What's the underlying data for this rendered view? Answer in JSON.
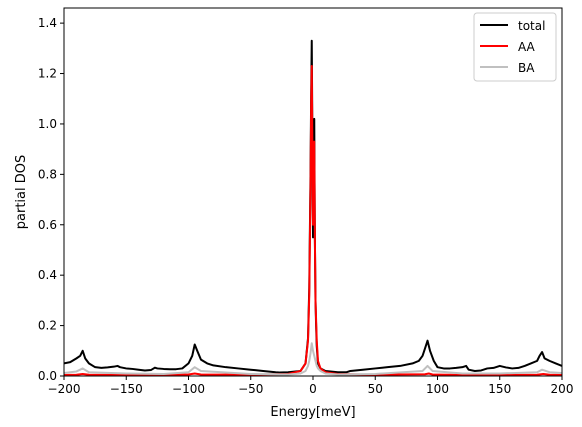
{
  "chart_data": {
    "type": "line",
    "title": "",
    "xlabel": "Energy[meV]",
    "ylabel": "partial DOS",
    "xlim": [
      -200,
      200
    ],
    "ylim": [
      0,
      1.46
    ],
    "xticks": [
      -200,
      -150,
      -100,
      -50,
      0,
      50,
      100,
      150,
      200
    ],
    "xtick_labels": [
      "−200",
      "−150",
      "−100",
      "−50",
      "0",
      "50",
      "100",
      "150",
      "200"
    ],
    "yticks": [
      0,
      0.2,
      0.4,
      0.6,
      0.8,
      1.0,
      1.2,
      1.4
    ],
    "ytick_labels": [
      "0.0",
      "0.2",
      "0.4",
      "0.6",
      "0.8",
      "1.0",
      "1.2",
      "1.4"
    ],
    "grid": false,
    "legend": {
      "position": "top-right"
    },
    "series": [
      {
        "name": "total",
        "color": "#000000",
        "x": [
          -200,
          -195,
          -190,
          -187,
          -185,
          -183,
          -180,
          -175,
          -170,
          -165,
          -160,
          -157,
          -155,
          -150,
          -145,
          -140,
          -135,
          -130,
          -127,
          -125,
          -120,
          -115,
          -110,
          -105,
          -100,
          -97,
          -95,
          -93,
          -90,
          -85,
          -80,
          -70,
          -60,
          -50,
          -40,
          -30,
          -27,
          -20,
          -10,
          -6,
          -4,
          -3,
          -2,
          -1.5,
          -1,
          -0.5,
          0,
          0.5,
          1,
          1.5,
          2,
          2.5,
          3,
          4,
          6,
          10,
          20,
          27,
          30,
          40,
          50,
          60,
          70,
          80,
          85,
          88,
          90,
          92,
          94,
          97,
          100,
          105,
          110,
          115,
          120,
          123,
          125,
          130,
          135,
          140,
          145,
          150,
          155,
          160,
          165,
          170,
          175,
          180,
          182,
          184,
          186,
          190,
          195,
          200
        ],
        "y": [
          0.05,
          0.055,
          0.07,
          0.08,
          0.1,
          0.07,
          0.05,
          0.035,
          0.032,
          0.034,
          0.037,
          0.04,
          0.035,
          0.03,
          0.028,
          0.025,
          0.022,
          0.024,
          0.033,
          0.03,
          0.028,
          0.027,
          0.027,
          0.03,
          0.05,
          0.08,
          0.125,
          0.1,
          0.065,
          0.05,
          0.042,
          0.035,
          0.03,
          0.025,
          0.02,
          0.015,
          0.014,
          0.015,
          0.02,
          0.05,
          0.15,
          0.35,
          0.8,
          1.1,
          1.33,
          0.95,
          0.55,
          0.65,
          1.02,
          0.55,
          0.3,
          0.2,
          0.12,
          0.05,
          0.03,
          0.02,
          0.015,
          0.015,
          0.02,
          0.025,
          0.03,
          0.035,
          0.04,
          0.05,
          0.06,
          0.08,
          0.11,
          0.14,
          0.1,
          0.06,
          0.035,
          0.03,
          0.03,
          0.032,
          0.035,
          0.04,
          0.025,
          0.02,
          0.022,
          0.03,
          0.032,
          0.04,
          0.034,
          0.03,
          0.032,
          0.04,
          0.05,
          0.06,
          0.08,
          0.095,
          0.07,
          0.06,
          0.05,
          0.04
        ]
      },
      {
        "name": "AA",
        "color": "#ff0000",
        "x": [
          -200,
          -190,
          -185,
          -180,
          -150,
          -120,
          -100,
          -95,
          -90,
          -50,
          -20,
          -10,
          -6,
          -4,
          -3,
          -2,
          -1.5,
          -1,
          -0.5,
          0,
          0.5,
          1,
          1.5,
          2,
          3,
          4,
          6,
          10,
          20,
          50,
          90,
          93,
          96,
          120,
          150,
          180,
          185,
          190,
          200
        ],
        "y": [
          0.004,
          0.005,
          0.008,
          0.005,
          0.004,
          0.004,
          0.006,
          0.01,
          0.006,
          0.005,
          0.008,
          0.02,
          0.05,
          0.14,
          0.32,
          0.75,
          1.05,
          1.23,
          0.9,
          0.6,
          0.75,
          0.93,
          0.55,
          0.3,
          0.14,
          0.06,
          0.03,
          0.015,
          0.008,
          0.005,
          0.007,
          0.01,
          0.006,
          0.004,
          0.004,
          0.005,
          0.008,
          0.005,
          0.004
        ]
      },
      {
        "name": "BA",
        "color": "#c0c0c0",
        "x": [
          -200,
          -190,
          -185,
          -180,
          -150,
          -120,
          -100,
          -95,
          -90,
          -50,
          -20,
          -10,
          -6,
          -4,
          -3,
          -2,
          -1,
          0,
          1,
          2,
          3,
          4,
          6,
          10,
          20,
          50,
          88,
          92,
          96,
          120,
          150,
          180,
          184,
          190,
          200
        ],
        "y": [
          0.012,
          0.018,
          0.03,
          0.015,
          0.01,
          0.008,
          0.015,
          0.035,
          0.02,
          0.008,
          0.006,
          0.01,
          0.02,
          0.04,
          0.06,
          0.09,
          0.13,
          0.1,
          0.08,
          0.06,
          0.04,
          0.03,
          0.02,
          0.01,
          0.006,
          0.008,
          0.02,
          0.04,
          0.02,
          0.01,
          0.01,
          0.015,
          0.025,
          0.015,
          0.012
        ]
      }
    ]
  }
}
